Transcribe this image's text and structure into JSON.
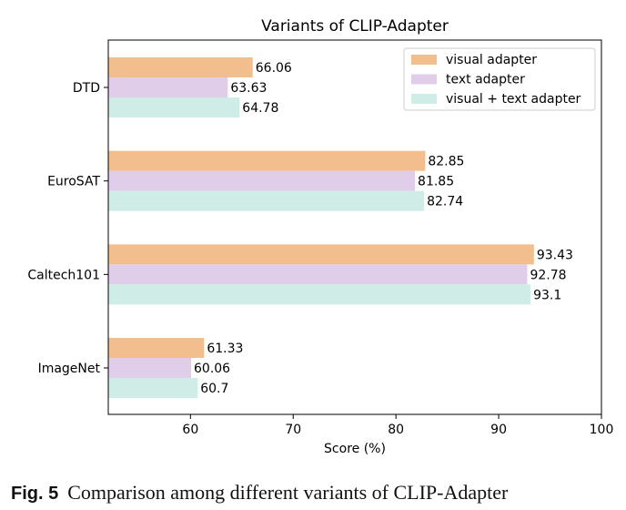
{
  "chart_data": {
    "type": "bar",
    "orientation": "horizontal",
    "title": "Variants of CLIP-Adapter",
    "xlabel": "Score (%)",
    "ylabel": "",
    "xlim": [
      52,
      100
    ],
    "xticks": [
      60,
      70,
      80,
      90,
      100
    ],
    "categories": [
      "DTD",
      "EuroSAT",
      "Caltech101",
      "ImageNet"
    ],
    "series": [
      {
        "name": "visual adapter",
        "color": "#f3be8e",
        "values": [
          66.06,
          82.85,
          93.43,
          61.33
        ]
      },
      {
        "name": "text adapter",
        "color": "#e0cdea",
        "values": [
          63.63,
          81.85,
          92.78,
          60.06
        ]
      },
      {
        "name": "visual + text adapter",
        "color": "#d0ece6",
        "values": [
          64.78,
          82.74,
          93.1,
          60.7
        ]
      }
    ],
    "legend": "top-right",
    "grid": false
  },
  "caption": {
    "label": "Fig. 5",
    "text": "Comparison among different variants of CLIP-Adapter"
  }
}
